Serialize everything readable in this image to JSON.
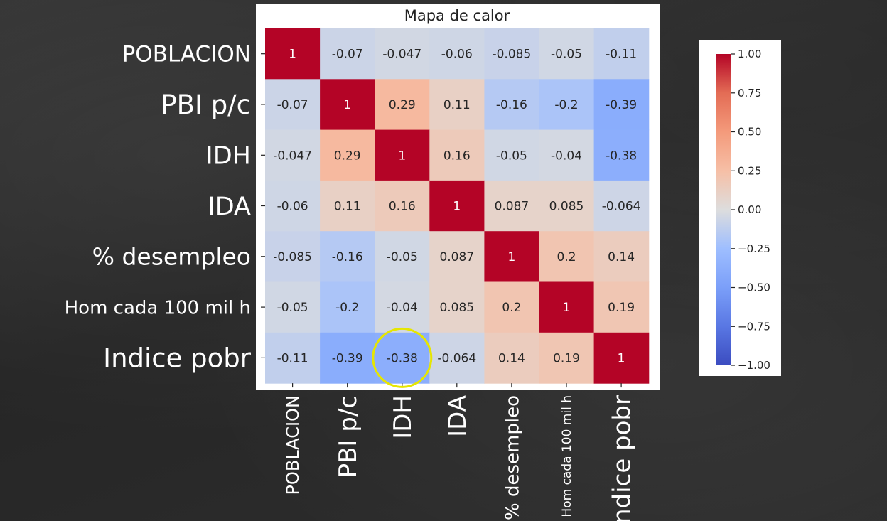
{
  "chart_data": {
    "type": "heatmap",
    "title": "Mapa de calor",
    "row_labels": [
      "POBLACION",
      "PBI p/c",
      "IDH",
      "IDA",
      "% desempleo",
      "Hom cada 100 mil h",
      "Indice pobr"
    ],
    "col_labels": [
      "POBLACION",
      "PBI p/c",
      "IDH",
      "IDA",
      "% desempleo",
      "Hom cada 100 mil h",
      "Indice pobr"
    ],
    "values": [
      [
        1,
        -0.07,
        -0.047,
        -0.06,
        -0.085,
        -0.05,
        -0.11
      ],
      [
        -0.07,
        1,
        0.29,
        0.11,
        -0.16,
        -0.2,
        -0.39
      ],
      [
        -0.047,
        0.29,
        1,
        0.16,
        -0.05,
        -0.04,
        -0.38
      ],
      [
        -0.06,
        0.11,
        0.16,
        1,
        0.087,
        0.085,
        -0.064
      ],
      [
        -0.085,
        -0.16,
        -0.05,
        0.087,
        1,
        0.2,
        0.14
      ],
      [
        -0.05,
        -0.2,
        -0.04,
        0.085,
        0.2,
        1,
        0.19
      ],
      [
        -0.11,
        -0.39,
        -0.38,
        -0.064,
        0.14,
        0.19,
        1
      ]
    ],
    "cell_labels": [
      [
        "1",
        "-0.07",
        "-0.047",
        "-0.06",
        "-0.085",
        "-0.05",
        "-0.11"
      ],
      [
        "-0.07",
        "1",
        "0.29",
        "0.11",
        "-0.16",
        "-0.2",
        "-0.39"
      ],
      [
        "-0.047",
        "0.29",
        "1",
        "0.16",
        "-0.05",
        "-0.04",
        "-0.38"
      ],
      [
        "-0.06",
        "0.11",
        "0.16",
        "1",
        "0.087",
        "0.085",
        "-0.064"
      ],
      [
        "-0.085",
        "-0.16",
        "-0.05",
        "0.087",
        "1",
        "0.2",
        "0.14"
      ],
      [
        "-0.05",
        "-0.2",
        "-0.04",
        "0.085",
        "0.2",
        "1",
        "0.19"
      ],
      [
        "-0.11",
        "-0.39",
        "-0.38",
        "-0.064",
        "0.14",
        "0.19",
        "1"
      ]
    ],
    "colormap": "coolwarm",
    "vmin": -1,
    "vmax": 1,
    "colorbar_ticks": [
      1,
      0.75,
      0.5,
      0.25,
      0,
      -0.25,
      -0.5,
      -0.75,
      -1
    ],
    "colorbar_tick_labels": [
      "1.00",
      "0.75",
      "0.50",
      "0.25",
      "0.00",
      "−0.25",
      "−0.50",
      "−0.75",
      "−1.00"
    ],
    "highlight": {
      "row": 6,
      "col": 2,
      "color": "#e6e600"
    }
  },
  "overlay": {
    "row_labels": [
      "POBLACION",
      "PBI p/c",
      "IDH",
      "IDA",
      "% desempleo",
      "Hom cada 100 mil h",
      "Indice pobr"
    ],
    "col_labels": [
      "POBLACION",
      "PBI p/c",
      "IDH",
      "IDA",
      "% desempleo",
      "Hom cada 100 mil h",
      "Indice pobr"
    ],
    "text_color": "#ffffff"
  },
  "colors": {
    "background": "#2b2b2b",
    "panel": "#ffffff",
    "cold": "#3b4cc0",
    "neutral": "#dddddd",
    "hot": "#b40426"
  }
}
